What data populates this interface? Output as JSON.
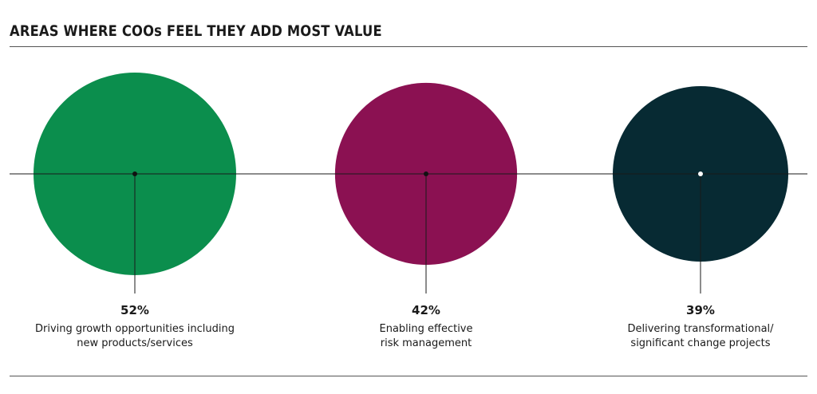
{
  "title": "AREAS WHERE COOs FEEL THEY ADD MOST VALUE",
  "chart_data": {
    "type": "bubble",
    "title": "AREAS WHERE COOs FEEL THEY ADD MOST VALUE",
    "series": [
      {
        "value": 52,
        "value_label": "52%",
        "label_lines": [
          "Driving growth opportunities including",
          "new products/services"
        ],
        "color": "#0b8e4d",
        "dot_color": "#111111"
      },
      {
        "value": 42,
        "value_label": "42%",
        "label_lines": [
          "Enabling effective",
          "risk management"
        ],
        "color": "#8b1152",
        "dot_color": "#111111"
      },
      {
        "value": 39,
        "value_label": "39%",
        "label_lines": [
          "Delivering transformational/",
          "significant change projects"
        ],
        "color": "#072a33",
        "dot_color": "#ffffff"
      }
    ]
  }
}
